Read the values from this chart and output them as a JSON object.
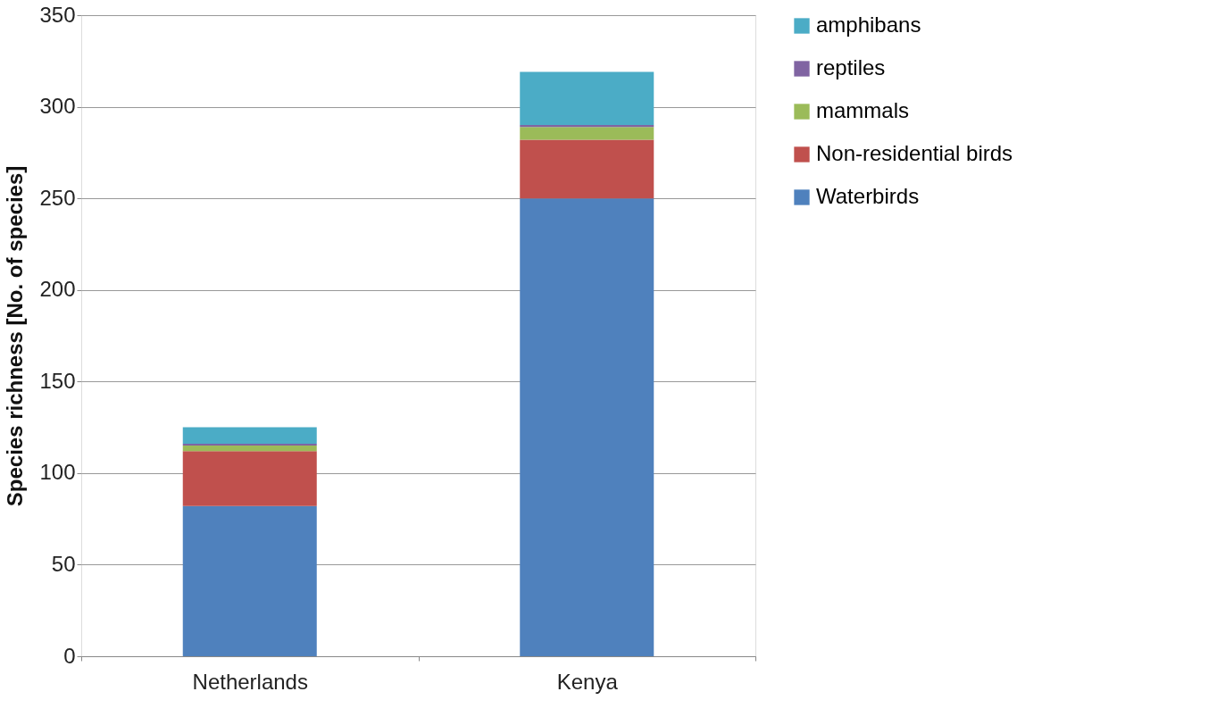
{
  "chart_data": {
    "type": "bar",
    "stacked": true,
    "ylabel": "Species richness [No. of species]",
    "categories": [
      "Netherlands",
      "Kenya"
    ],
    "series": [
      {
        "name": "Waterbirds",
        "color": "#4f81bd",
        "values": [
          82,
          250
        ]
      },
      {
        "name": "Non-residential birds",
        "color": "#c0504d",
        "values": [
          30,
          32
        ]
      },
      {
        "name": "mammals",
        "color": "#9bbb59",
        "values": [
          3,
          7
        ]
      },
      {
        "name": "reptiles",
        "color": "#8064a2",
        "values": [
          1,
          1
        ]
      },
      {
        "name": "amphibans",
        "color": "#4bacc6",
        "values": [
          9,
          29
        ]
      }
    ],
    "ylim": [
      0,
      350
    ],
    "yticks": [
      0,
      50,
      100,
      150,
      200,
      250,
      300,
      350
    ],
    "grid": "y",
    "legend": "right"
  }
}
